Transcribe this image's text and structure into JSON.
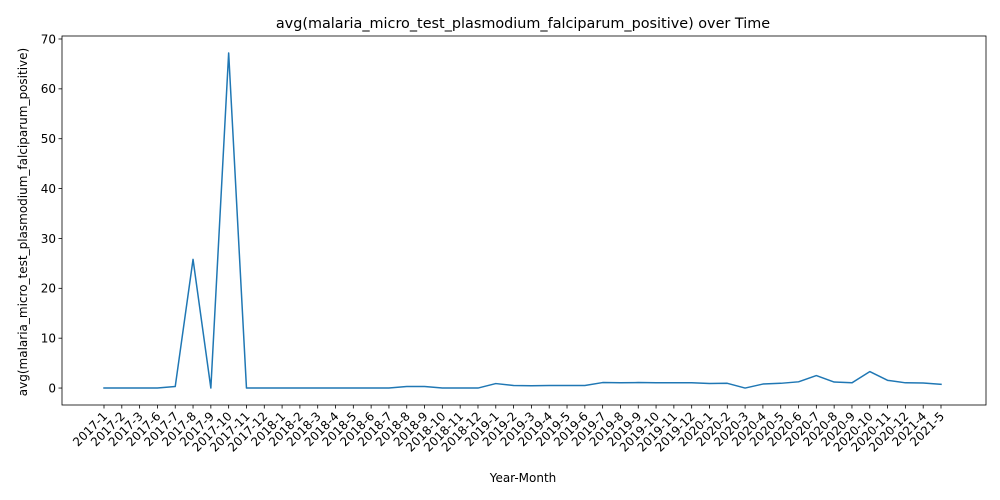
{
  "chart_data": {
    "type": "line",
    "title": "avg(malaria_micro_test_plasmodium_falciparum_positive) over Time",
    "xlabel": "Year-Month",
    "ylabel": "avg(malaria_micro_test_plasmodium_falciparum_positive)",
    "ylim": [
      -3.4,
      70.6
    ],
    "yticks": [
      0,
      10,
      20,
      30,
      40,
      50,
      60,
      70
    ],
    "grid": false,
    "line_color": "#1f77b4",
    "categories": [
      "2017-1",
      "2017-2",
      "2017-3",
      "2017-6",
      "2017-7",
      "2017-8",
      "2017-9",
      "2017-10",
      "2017-11",
      "2017-12",
      "2018-1",
      "2018-2",
      "2018-3",
      "2018-4",
      "2018-5",
      "2018-6",
      "2018-7",
      "2018-8",
      "2018-9",
      "2018-10",
      "2018-11",
      "2018-12",
      "2019-1",
      "2019-2",
      "2019-3",
      "2019-4",
      "2019-5",
      "2019-6",
      "2019-7",
      "2019-8",
      "2019-9",
      "2019-10",
      "2019-11",
      "2019-12",
      "2020-1",
      "2020-2",
      "2020-3",
      "2020-4",
      "2020-5",
      "2020-6",
      "2020-7",
      "2020-8",
      "2020-9",
      "2020-10",
      "2020-11",
      "2020-12",
      "2021-4",
      "2021-5"
    ],
    "series": [
      {
        "values": [
          0,
          0,
          0,
          0,
          0.3,
          25.8,
          0,
          67.2,
          0,
          0,
          0,
          0,
          0,
          0,
          0,
          0,
          0,
          0.3,
          0.3,
          0,
          0,
          0,
          0.9,
          0.5,
          0.45,
          0.5,
          0.5,
          0.5,
          1.1,
          1.05,
          1.1,
          1.05,
          1.05,
          1.05,
          0.9,
          0.95,
          0,
          0.8,
          0.95,
          1.25,
          2.5,
          1.2,
          1.05,
          3.3,
          1.55,
          1.05,
          1.0,
          0.75
        ]
      }
    ]
  }
}
